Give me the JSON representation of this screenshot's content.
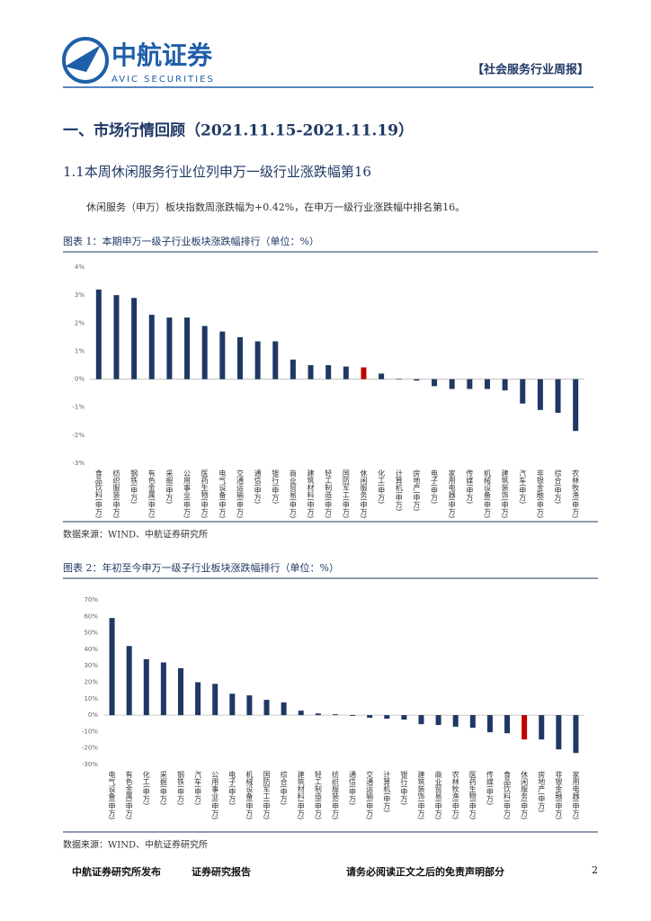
{
  "header": {
    "logo": "中航证券",
    "logo_sub": "AVIC SECURITIES",
    "report_type": "【社会服务行业周报】"
  },
  "section_title": "一、市场行情回顾（2021.11.15-2021.11.19）",
  "subsection_title": "1.1本周休闲服务行业位列申万一级行业涨跌幅第16",
  "paragraph": "休闲服务（申万）板块指数周涨跌幅为+0.42%，在申万一级行业涨跌幅中排名第16。",
  "figures": [
    {
      "caption": "图表 1：本期申万一级子行业板块涨跌幅排行（单位：%）",
      "source": "数据来源：WIND、中航证券研究所"
    },
    {
      "caption": "图表 2：年初至今申万一级子行业板块涨跌幅排行（单位：%）",
      "source": "数据来源：WIND、中航证券研究所"
    }
  ],
  "chart_data": [
    {
      "type": "bar",
      "categories": [
        "食品饮料(申万)",
        "纺织服装(申万)",
        "钢铁(申万)",
        "有色金属(申万)",
        "采掘(申万)",
        "公用事业(申万)",
        "医药生物(申万)",
        "电气设备(申万)",
        "交通运输(申万)",
        "通信(申万)",
        "银行(申万)",
        "商业贸易(申万)",
        "建筑材料(申万)",
        "轻工制造(申万)",
        "国防军工(申万)",
        "休闲服务(申万)",
        "化工(申万)",
        "计算机(申万)",
        "房地产(申万)",
        "电子(申万)",
        "家用电器(申万)",
        "传媒(申万)",
        "机械设备(申万)",
        "建筑装饰(申万)",
        "汽车(申万)",
        "非银金融(申万)",
        "综合(申万)",
        "农林牧渔(申万)"
      ],
      "values": [
        3.2,
        3.0,
        2.9,
        2.3,
        2.2,
        2.2,
        1.9,
        1.7,
        1.5,
        1.35,
        1.35,
        0.7,
        0.5,
        0.5,
        0.45,
        0.42,
        0.2,
        0.02,
        -0.05,
        -0.25,
        -0.35,
        -0.35,
        -0.35,
        -0.4,
        -0.87,
        -1.1,
        -1.2,
        -1.85
      ],
      "colors": [
        "#1f3864",
        "#1f3864",
        "#1f3864",
        "#1f3864",
        "#1f3864",
        "#1f3864",
        "#1f3864",
        "#1f3864",
        "#1f3864",
        "#1f3864",
        "#1f3864",
        "#1f3864",
        "#1f3864",
        "#1f3864",
        "#1f3864",
        "#c00000",
        "#1f3864",
        "#1f3864",
        "#1f3864",
        "#1f3864",
        "#1f3864",
        "#1f3864",
        "#1f3864",
        "#1f3864",
        "#1f3864",
        "#1f3864",
        "#1f3864",
        "#1f3864"
      ],
      "ylim": [
        -3,
        4
      ],
      "yticks": [
        {
          "value": 4,
          "label": "4%"
        },
        {
          "value": 3,
          "label": "3%"
        },
        {
          "value": 2,
          "label": "2%"
        },
        {
          "value": 1,
          "label": "1%"
        },
        {
          "value": 0,
          "label": "0%"
        },
        {
          "value": -1,
          "label": "-1%"
        },
        {
          "value": -2,
          "label": "-2%"
        },
        {
          "value": -3,
          "label": "-3%"
        }
      ]
    },
    {
      "type": "bar",
      "categories": [
        "电气设备(申万)",
        "有色金属(申万)",
        "化工(申万)",
        "采掘(申万)",
        "钢铁(申万)",
        "汽车(申万)",
        "公用事业(申万)",
        "电子(申万)",
        "机械设备(申万)",
        "国防军工(申万)",
        "综合(申万)",
        "建筑材料(申万)",
        "轻工制造(申万)",
        "纺织服装(申万)",
        "通信(申万)",
        "交通运输(申万)",
        "计算机(申万)",
        "银行(申万)",
        "建筑装饰(申万)",
        "商业贸易(申万)",
        "农林牧渔(申万)",
        "医药生物(申万)",
        "传媒(申万)",
        "食品饮料(申万)",
        "休闲服务(申万)",
        "房地产(申万)",
        "非银金融(申万)",
        "家用电器(申万)"
      ],
      "values": [
        59,
        42,
        34,
        32,
        28.5,
        20,
        19,
        13,
        12,
        9.3,
        7.7,
        2.7,
        1,
        0.5,
        -0.5,
        -1.6,
        -2.2,
        -2.7,
        -5.5,
        -6,
        -7,
        -7.7,
        -10.4,
        -11,
        -14.8,
        -14.8,
        -20.8,
        -23
      ],
      "colors": [
        "#1f3864",
        "#1f3864",
        "#1f3864",
        "#1f3864",
        "#1f3864",
        "#1f3864",
        "#1f3864",
        "#1f3864",
        "#1f3864",
        "#1f3864",
        "#1f3864",
        "#1f3864",
        "#1f3864",
        "#1f3864",
        "#1f3864",
        "#1f3864",
        "#1f3864",
        "#1f3864",
        "#1f3864",
        "#1f3864",
        "#1f3864",
        "#1f3864",
        "#1f3864",
        "#1f3864",
        "#c00000",
        "#1f3864",
        "#1f3864",
        "#1f3864"
      ],
      "ylim": [
        -30,
        70
      ],
      "yticks": [
        {
          "value": 70,
          "label": "70%"
        },
        {
          "value": 60,
          "label": "60%"
        },
        {
          "value": 50,
          "label": "50%"
        },
        {
          "value": 40,
          "label": "40%"
        },
        {
          "value": 30,
          "label": "30%"
        },
        {
          "value": 20,
          "label": "20%"
        },
        {
          "value": 10,
          "label": "10%"
        },
        {
          "value": 0,
          "label": "0%"
        },
        {
          "value": -10,
          "label": "-10%"
        },
        {
          "value": -20,
          "label": "-20%"
        },
        {
          "value": -30,
          "label": "-30%"
        }
      ]
    }
  ],
  "footer": {
    "left": "中航证券研究所发布",
    "middle": "证券研究报告",
    "right": "请务必阅读正文之后的免责声明部分",
    "page": "2"
  }
}
